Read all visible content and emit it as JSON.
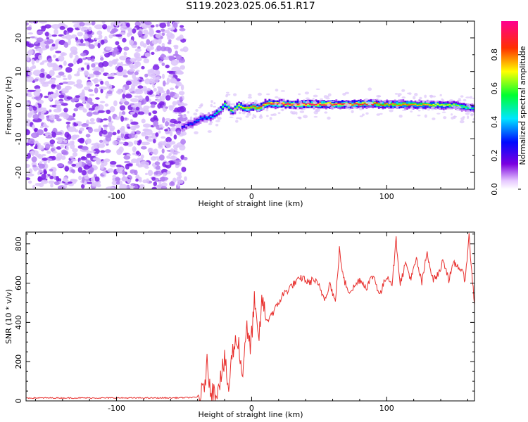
{
  "figure_title": "S119.2023.025.06.51.R17",
  "colors": {
    "snr_line": "#e8302e",
    "axis": "#000000"
  },
  "chart_data": [
    {
      "type": "heatmap",
      "xlabel": "Height of straight line (km)",
      "ylabel": "Frequency (Hz)",
      "xlim": [
        -167,
        165
      ],
      "ylim": [
        -25,
        25
      ],
      "x_ticks": [
        -100,
        0,
        100
      ],
      "y_ticks": [
        -20,
        -10,
        0,
        10,
        20
      ],
      "colorbar": {
        "label": "Normalized spectral amplitude",
        "range": [
          0,
          1
        ],
        "ticks": [
          0.0,
          0.2,
          0.4,
          0.6,
          0.8
        ],
        "tick_labels": [
          "0.0",
          "0.2",
          "0.4",
          "0.6",
          "0.8"
        ]
      },
      "signal_track": {
        "x": [
          -52,
          -45,
          -38,
          -30,
          -24,
          -20,
          -15,
          -10,
          -5,
          0,
          5,
          10,
          20,
          40,
          60,
          80,
          90,
          95,
          110,
          130,
          150,
          165
        ],
        "frequency": [
          -6.5,
          -5.5,
          -4,
          -3.5,
          -1.5,
          0.5,
          -2,
          0,
          -1,
          -0.5,
          -0.8,
          0.5,
          0.3,
          0.3,
          0.3,
          0.3,
          0.5,
          0.2,
          0.2,
          0.1,
          0,
          -1.2
        ],
        "amplitude": [
          0.25,
          0.3,
          0.35,
          0.4,
          0.55,
          0.6,
          0.65,
          0.7,
          0.75,
          0.8,
          0.85,
          0.9,
          0.95,
          0.95,
          0.95,
          0.9,
          0.85,
          0.8,
          0.8,
          0.75,
          0.65,
          0.5
        ]
      }
    },
    {
      "type": "line",
      "xlabel": "Height of straight line (km)",
      "ylabel": "SNR (10 * v/v)",
      "xlim": [
        -167,
        165
      ],
      "ylim": [
        0,
        860
      ],
      "x_ticks": [
        -100,
        0,
        100
      ],
      "y_ticks": [
        0,
        200,
        400,
        600,
        800
      ],
      "series": [
        {
          "x": [
            -167,
            -120,
            -60,
            -40,
            -36,
            -33,
            -30,
            -27,
            -24,
            -20,
            -17,
            -14,
            -10,
            -7,
            -4,
            -1,
            2,
            5,
            8,
            11,
            14,
            17,
            20,
            23,
            26,
            30,
            34,
            38,
            42,
            46,
            50,
            54,
            58,
            62,
            65,
            68,
            72,
            76,
            80,
            85,
            90,
            95,
            100,
            104,
            107,
            110,
            114,
            118,
            122,
            126,
            130,
            134,
            138,
            142,
            146,
            150,
            154,
            158,
            161,
            163,
            165
          ],
          "y": [
            15,
            15,
            15,
            18,
            40,
            180,
            60,
            30,
            100,
            200,
            60,
            260,
            320,
            120,
            380,
            260,
            500,
            300,
            520,
            400,
            440,
            460,
            500,
            540,
            560,
            590,
            610,
            630,
            600,
            620,
            580,
            520,
            600,
            500,
            770,
            620,
            560,
            580,
            620,
            580,
            640,
            540,
            640,
            600,
            820,
            600,
            700,
            620,
            720,
            600,
            760,
            620,
            640,
            720,
            620,
            700,
            680,
            620,
            840,
            650,
            500
          ]
        }
      ]
    }
  ]
}
